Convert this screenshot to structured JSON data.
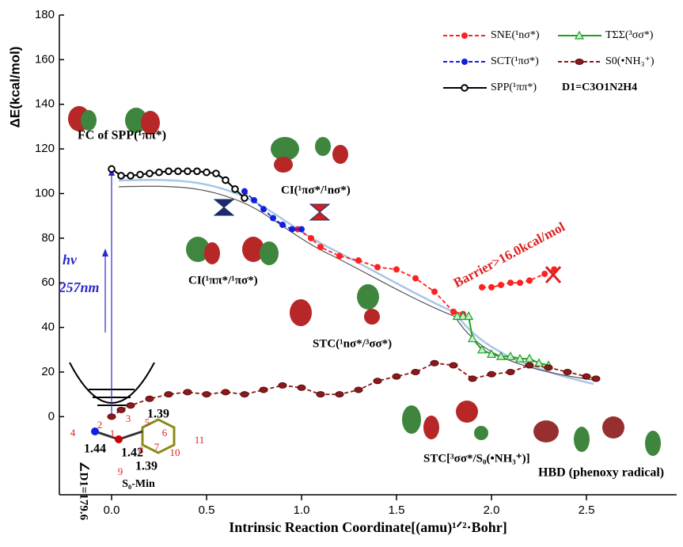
{
  "chart_data": {
    "type": "line",
    "xlabel": "Intrinsic Reaction Coordinate[(amu)¹ᐟ²·Bohr]",
    "ylabel": "ΔE(kcal/mol)",
    "xlim": [
      -0.275,
      2.975
    ],
    "ylim": [
      -35,
      180
    ],
    "xticks": [
      {
        "value": 0,
        "label": "0.0"
      },
      0.5,
      {
        "value": 1,
        "label": "1.0"
      },
      1.5,
      {
        "value": 2,
        "label": "2.0"
      },
      2.5
    ],
    "yticks": [
      0,
      20,
      40,
      60,
      80,
      100,
      120,
      140,
      160,
      180
    ],
    "legend_note": "D1=C3O1N2H4",
    "series": [
      {
        "name": "SNE(¹nσ*)",
        "color": "#ff2020",
        "marker": "circle",
        "dash": true,
        "x": [
          0.98,
          1.05,
          1.1,
          1.2,
          1.3,
          1.4,
          1.5,
          1.6,
          1.7,
          1.8,
          1.85,
          null,
          1.95,
          2.0,
          2.05,
          2.1,
          2.15,
          2.2,
          2.28,
          2.33
        ],
        "values": [
          84,
          80,
          76,
          72,
          70,
          67,
          66,
          62,
          56,
          47,
          46,
          null,
          58,
          58,
          59,
          60,
          60,
          61,
          64,
          66
        ]
      },
      {
        "name": "TΣΣ(³σσ*)",
        "color": "#20a020",
        "marker": "triangle",
        "dash": false,
        "x": [
          1.82,
          1.85,
          1.88,
          1.9,
          1.95,
          2.0,
          2.05,
          2.1,
          2.15,
          2.2,
          2.25,
          2.3
        ],
        "values": [
          45,
          45,
          45,
          35,
          30,
          28,
          27,
          27,
          26,
          26,
          24,
          23
        ]
      },
      {
        "name": "SCT(¹πσ*)",
        "color": "#1020e0",
        "marker": "circle",
        "dash": true,
        "x": [
          0.7,
          0.75,
          0.8,
          0.85,
          0.9,
          0.95,
          1.0
        ],
        "values": [
          101,
          97,
          93,
          89,
          86,
          84,
          84
        ]
      },
      {
        "name": "S0(•NH₃⁺)",
        "color": "#8b1a1a",
        "marker": "ellipse",
        "dash": true,
        "x": [
          0.0,
          0.05,
          0.1,
          0.2,
          0.3,
          0.4,
          0.5,
          0.6,
          0.7,
          0.8,
          0.9,
          1.0,
          1.1,
          1.2,
          1.3,
          1.4,
          1.5,
          1.6,
          1.7,
          1.8,
          1.9,
          2.0,
          2.1,
          2.2,
          2.3,
          2.4,
          2.5,
          2.55
        ],
        "values": [
          0,
          3,
          5,
          8,
          10,
          11,
          10,
          11,
          10,
          12,
          14,
          13,
          10,
          10,
          12,
          16,
          18,
          20,
          24,
          23,
          17,
          19,
          20,
          23,
          22,
          20,
          18,
          17
        ]
      },
      {
        "name": "SPP(¹ππ*)",
        "color": "#000000",
        "marker": "open-circle",
        "dash": false,
        "x": [
          0.0,
          0.05,
          0.1,
          0.15,
          0.2,
          0.25,
          0.3,
          0.35,
          0.4,
          0.45,
          0.5,
          0.55,
          0.6,
          0.65,
          0.7
        ],
        "values": [
          111,
          108,
          108,
          108.5,
          109,
          109.5,
          110,
          110,
          110,
          110,
          109.5,
          109,
          106,
          102,
          98
        ]
      }
    ],
    "annotations": [
      "FC of SPP(¹ππ*)",
      "CI(¹πσ*/¹nσ*)",
      "CI(¹ππ*/¹πσ*)",
      "STC(¹nσ*/³σσ*)",
      "STC[³σσ*/S₀(•NH₃⁺)]",
      "HBD (phenoxy radical)",
      "Barrier>16.0kcal/mol",
      "hν",
      "257nm",
      "S₀-Min",
      "∠D1=179.6",
      "1.39",
      "1.44",
      "1.42",
      "1.39"
    ],
    "atom_numbers": [
      "1",
      "2",
      "3",
      "4",
      "5",
      "6",
      "7",
      "8",
      "9",
      "10",
      "11"
    ]
  }
}
